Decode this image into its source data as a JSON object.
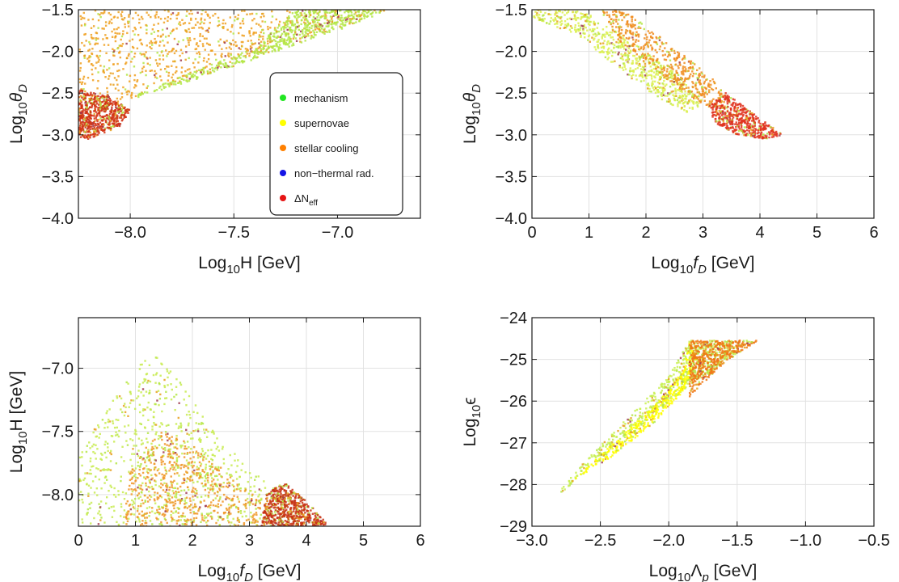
{
  "chart_data": [
    {
      "id": "panel-a",
      "type": "scatter",
      "xlabel": {
        "base": "Log",
        "sub": "10",
        "main": "H [GeV]",
        "italic": false
      },
      "ylabel": {
        "base": "Log",
        "sub": "10",
        "main": "θ",
        "italic_sub": "D"
      },
      "xlim": [
        -8.25,
        -6.6
      ],
      "ylim": [
        -4.0,
        -1.5
      ],
      "xticks": [
        -8.0,
        -7.5,
        -7.0
      ],
      "xtick_labels": [
        "−8.0",
        "−7.5",
        "−7.0"
      ],
      "yticks": [
        -4.0,
        -3.5,
        -3.0,
        -2.5,
        -2.0,
        -1.5
      ],
      "ytick_labels": [
        "−4.0",
        "−3.5",
        "−3.0",
        "−2.5",
        "−2.0",
        "−1.5"
      ],
      "grid": true,
      "legend": {
        "placement": "right-center",
        "entries": [
          {
            "label": "mechanism",
            "color": "#22e622"
          },
          {
            "label": "supernovae",
            "color": "#ffff00"
          },
          {
            "label": "stellar cooling",
            "color": "#ff8000"
          },
          {
            "label": "non−thermal rad.",
            "color": "#1414e6"
          },
          {
            "label": "ΔN",
            "sub": "eff",
            "color": "#e61414"
          }
        ]
      },
      "regions": [
        {
          "color": "#f0a020",
          "polygon": [
            [
              -8.25,
              -1.5
            ],
            [
              -6.75,
              -1.5
            ],
            [
              -6.9,
              -1.65
            ],
            [
              -7.3,
              -1.95
            ],
            [
              -7.7,
              -2.3
            ],
            [
              -8.0,
              -2.6
            ],
            [
              -8.25,
              -2.8
            ]
          ]
        },
        {
          "color": "#b4e646",
          "polygon": [
            [
              -7.2,
              -1.5
            ],
            [
              -6.75,
              -1.5
            ],
            [
              -7.0,
              -1.75
            ],
            [
              -7.35,
              -2.05
            ],
            [
              -7.7,
              -2.35
            ],
            [
              -7.9,
              -2.5
            ],
            [
              -8.0,
              -2.55
            ],
            [
              -7.7,
              -2.25
            ],
            [
              -7.4,
              -1.95
            ]
          ]
        },
        {
          "color": "#d23214",
          "polygon": [
            [
              -8.25,
              -2.45
            ],
            [
              -8.1,
              -2.55
            ],
            [
              -8.0,
              -2.7
            ],
            [
              -8.05,
              -2.9
            ],
            [
              -8.2,
              -3.05
            ],
            [
              -8.25,
              -3.05
            ]
          ]
        }
      ],
      "scatter_density": 1800
    },
    {
      "id": "panel-b",
      "type": "scatter",
      "xlabel": {
        "base": "Log",
        "sub": "10",
        "main": "f",
        "italic_sub": "D",
        "unit": " [GeV]"
      },
      "ylabel": {
        "base": "Log",
        "sub": "10",
        "main": "θ",
        "italic_sub": "D"
      },
      "xlim": [
        0,
        6
      ],
      "ylim": [
        -4.0,
        -1.5
      ],
      "xticks": [
        0,
        1,
        2,
        3,
        4,
        5,
        6
      ],
      "xtick_labels": [
        "0",
        "1",
        "2",
        "3",
        "4",
        "5",
        "6"
      ],
      "yticks": [
        -4.0,
        -3.5,
        -3.0,
        -2.5,
        -2.0,
        -1.5
      ],
      "ytick_labels": [
        "−4.0",
        "−3.5",
        "−3.0",
        "−2.5",
        "−2.0",
        "−1.5"
      ],
      "grid": true,
      "regions": [
        {
          "color": "#dcf050",
          "polygon": [
            [
              0,
              -1.5
            ],
            [
              0.9,
              -1.5
            ],
            [
              1.8,
              -1.9
            ],
            [
              2.6,
              -2.3
            ],
            [
              3.0,
              -2.6
            ],
            [
              2.8,
              -2.75
            ],
            [
              2.3,
              -2.6
            ],
            [
              1.6,
              -2.25
            ],
            [
              0.8,
              -1.8
            ],
            [
              0,
              -1.6
            ]
          ]
        },
        {
          "color": "#f08c1e",
          "polygon": [
            [
              1.2,
              -1.5
            ],
            [
              1.6,
              -1.5
            ],
            [
              2.5,
              -1.95
            ],
            [
              3.2,
              -2.35
            ],
            [
              3.5,
              -2.6
            ],
            [
              3.3,
              -2.75
            ],
            [
              2.8,
              -2.55
            ],
            [
              2.1,
              -2.2
            ],
            [
              1.5,
              -1.85
            ]
          ]
        },
        {
          "color": "#e1321e",
          "polygon": [
            [
              3.4,
              -2.5
            ],
            [
              3.9,
              -2.75
            ],
            [
              4.4,
              -3.0
            ],
            [
              4.1,
              -3.05
            ],
            [
              3.6,
              -3.0
            ],
            [
              3.2,
              -2.85
            ],
            [
              3.1,
              -2.65
            ]
          ]
        }
      ],
      "scatter_density": 1500
    },
    {
      "id": "panel-c",
      "type": "scatter",
      "xlabel": {
        "base": "Log",
        "sub": "10",
        "main": "f",
        "italic_sub": "D",
        "unit": " [GeV]"
      },
      "ylabel": {
        "base": "Log",
        "sub": "10",
        "main": "H [GeV]"
      },
      "xlim": [
        0,
        6
      ],
      "ylim": [
        -8.25,
        -6.6
      ],
      "xticks": [
        0,
        1,
        2,
        3,
        4,
        5,
        6
      ],
      "xtick_labels": [
        "0",
        "1",
        "2",
        "3",
        "4",
        "5",
        "6"
      ],
      "yticks": [
        -8.0,
        -7.5,
        -7.0
      ],
      "ytick_labels": [
        "−8.0",
        "−7.5",
        "−7.0"
      ],
      "grid": true,
      "regions": [
        {
          "color": "#c8eb50",
          "polygon": [
            [
              0,
              -8.25
            ],
            [
              0,
              -7.7
            ],
            [
              0.5,
              -7.3
            ],
            [
              1.0,
              -7.0
            ],
            [
              1.3,
              -6.85
            ],
            [
              1.7,
              -7.05
            ],
            [
              2.3,
              -7.45
            ],
            [
              3.0,
              -7.8
            ],
            [
              3.6,
              -8.0
            ],
            [
              4.3,
              -8.25
            ]
          ]
        },
        {
          "color": "#f09628",
          "polygon": [
            [
              0.8,
              -8.25
            ],
            [
              0.9,
              -7.8
            ],
            [
              1.4,
              -7.5
            ],
            [
              2.0,
              -7.6
            ],
            [
              2.8,
              -7.9
            ],
            [
              3.2,
              -8.05
            ],
            [
              3.3,
              -8.25
            ]
          ]
        },
        {
          "color": "#c83214",
          "polygon": [
            [
              3.2,
              -8.25
            ],
            [
              3.3,
              -8.0
            ],
            [
              3.6,
              -7.9
            ],
            [
              4.0,
              -8.05
            ],
            [
              4.4,
              -8.25
            ]
          ]
        }
      ],
      "scatter_density": 1800
    },
    {
      "id": "panel-d",
      "type": "scatter",
      "xlabel": {
        "base": "Log",
        "sub": "10",
        "main": "Λ",
        "italic_sub": "p",
        "unit": " [GeV]"
      },
      "ylabel": {
        "base": "Log",
        "sub": "10",
        "main": "ϵ"
      },
      "xlim": [
        -3.0,
        -0.5
      ],
      "ylim": [
        -29,
        -24
      ],
      "xticks": [
        -3.0,
        -2.5,
        -2.0,
        -1.5,
        -1.0,
        -0.5
      ],
      "xtick_labels": [
        "−3.0",
        "−2.5",
        "−2.0",
        "−1.5",
        "−1.0",
        "−0.5"
      ],
      "yticks": [
        -29,
        -28,
        -27,
        -26,
        -25,
        -24
      ],
      "ytick_labels": [
        "−29",
        "−28",
        "−27",
        "−26",
        "−25",
        "−24"
      ],
      "grid": true,
      "regions": [
        {
          "color": "#c8f050",
          "polygon": [
            [
              -2.85,
              -28.35
            ],
            [
              -2.6,
              -27.4
            ],
            [
              -2.3,
              -26.4
            ],
            [
              -2.0,
              -25.4
            ],
            [
              -1.85,
              -24.55
            ],
            [
              -1.35,
              -24.55
            ],
            [
              -1.65,
              -25.2
            ],
            [
              -2.0,
              -26.0
            ],
            [
              -2.4,
              -27.1
            ],
            [
              -2.75,
              -28.1
            ]
          ]
        },
        {
          "color": "#ffff00",
          "polygon": [
            [
              -2.7,
              -27.9
            ],
            [
              -2.4,
              -27.0
            ],
            [
              -2.1,
              -26.1
            ],
            [
              -1.9,
              -25.3
            ],
            [
              -1.85,
              -24.6
            ],
            [
              -1.8,
              -25.0
            ],
            [
              -1.9,
              -25.8
            ],
            [
              -2.1,
              -26.5
            ],
            [
              -2.4,
              -27.3
            ]
          ]
        },
        {
          "color": "#f07814",
          "polygon": [
            [
              -1.85,
              -24.55
            ],
            [
              -1.35,
              -24.55
            ],
            [
              -1.6,
              -25.1
            ],
            [
              -1.85,
              -25.9
            ]
          ]
        }
      ],
      "scatter_density": 1400
    }
  ]
}
